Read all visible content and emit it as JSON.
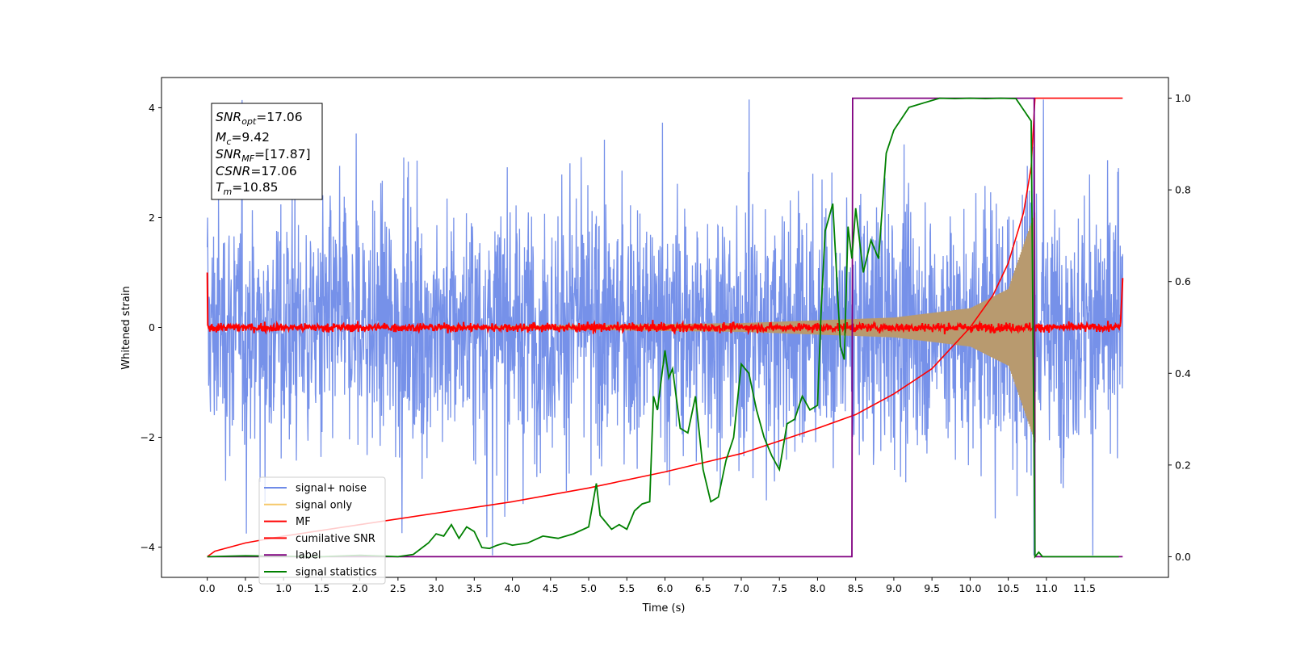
{
  "chart_data": {
    "type": "line",
    "xlabel": "Time (s)",
    "ylabel": "Whitened strain",
    "xlim": [
      -0.6,
      12.6
    ],
    "ylim": [
      -4.55,
      4.55
    ],
    "y2lim": [
      -0.045,
      1.045
    ],
    "x_ticks": [
      "0.0",
      "0.5",
      "1.0",
      "1.5",
      "2.0",
      "2.5",
      "3.0",
      "3.5",
      "4.0",
      "4.5",
      "5.0",
      "5.5",
      "6.0",
      "6.5",
      "7.0",
      "7.5",
      "8.0",
      "8.5",
      "9.0",
      "9.5",
      "10.0",
      "10.5",
      "11.0",
      "11.5"
    ],
    "y_ticks": [
      "4",
      "2",
      "0",
      "−2",
      "−4"
    ],
    "y2_ticks": [
      "1.0",
      "0.8",
      "0.6",
      "0.4",
      "0.2",
      "0.0"
    ],
    "annotation": {
      "snr_opt": "=17.06",
      "mc": "=9.42",
      "snr_mf": "=[17.87]",
      "csnr": "=17.06",
      "tm": "=10.85"
    },
    "legend_position": "lower-left",
    "series": [
      {
        "name": "signal+ noise",
        "axis": "left",
        "color": "#6f8be8",
        "description_values": {
          "x_range": [
            0.0,
            12.0
          ],
          "std": 1.0
        }
      },
      {
        "name": "signal only",
        "axis": "left",
        "color": "#f5c86a",
        "description_values": {
          "x_range": [
            0.0,
            10.85
          ],
          "envelope_at_x": [
            [
              4.0,
              0.03
            ],
            [
              7.0,
              0.08
            ],
            [
              9.0,
              0.18
            ],
            [
              10.0,
              0.35
            ],
            [
              10.5,
              0.7
            ],
            [
              10.85,
              2.1
            ]
          ]
        }
      },
      {
        "name": "MF",
        "axis": "left",
        "color": "#ff0000",
        "description_values": {
          "x_range": [
            0.0,
            12.0
          ],
          "level": 0.0,
          "start_value": 1.0,
          "end_value": 0.9
        }
      },
      {
        "name": "cumilative SNR",
        "axis": "right",
        "color": "#ff0000",
        "x": [
          0.0,
          0.1,
          0.5,
          1.0,
          2.0,
          3.0,
          4.0,
          5.0,
          6.0,
          7.0,
          8.0,
          8.5,
          9.0,
          9.5,
          10.0,
          10.3,
          10.5,
          10.7,
          10.8,
          10.85,
          10.86,
          12.0
        ],
        "y": [
          0.0,
          0.012,
          0.03,
          0.045,
          0.07,
          0.095,
          0.12,
          0.15,
          0.185,
          0.225,
          0.28,
          0.31,
          0.355,
          0.41,
          0.5,
          0.57,
          0.64,
          0.75,
          0.85,
          1.0,
          1.0,
          1.0
        ]
      },
      {
        "name": "label",
        "axis": "right",
        "color": "#800080",
        "x": [
          0.0,
          8.45,
          8.46,
          10.84,
          10.85,
          11.0,
          12.0
        ],
        "y": [
          0.0,
          0.0,
          1.0,
          1.0,
          0.0,
          0.0,
          0.0
        ]
      },
      {
        "name": "signal statistics",
        "axis": "right",
        "color": "#008000",
        "x": [
          0.0,
          0.5,
          1.0,
          1.5,
          2.0,
          2.5,
          2.7,
          2.9,
          3.0,
          3.1,
          3.2,
          3.3,
          3.4,
          3.5,
          3.6,
          3.7,
          3.8,
          3.9,
          4.0,
          4.2,
          4.4,
          4.6,
          4.8,
          5.0,
          5.1,
          5.15,
          5.2,
          5.3,
          5.4,
          5.5,
          5.6,
          5.7,
          5.8,
          5.85,
          5.9,
          6.0,
          6.05,
          6.1,
          6.2,
          6.3,
          6.4,
          6.5,
          6.6,
          6.7,
          6.8,
          6.9,
          7.0,
          7.1,
          7.2,
          7.3,
          7.4,
          7.5,
          7.6,
          7.7,
          7.8,
          7.9,
          8.0,
          8.05,
          8.1,
          8.2,
          8.3,
          8.35,
          8.4,
          8.45,
          8.5,
          8.6,
          8.7,
          8.8,
          8.9,
          9.0,
          9.2,
          9.4,
          9.6,
          9.8,
          10.0,
          10.2,
          10.4,
          10.6,
          10.8,
          10.85,
          10.9,
          10.95,
          11.0,
          11.5,
          11.95
        ],
        "y": [
          0.0,
          0.002,
          0.001,
          0.0,
          0.003,
          0.0,
          0.005,
          0.03,
          0.05,
          0.045,
          0.07,
          0.04,
          0.065,
          0.055,
          0.02,
          0.018,
          0.025,
          0.03,
          0.025,
          0.03,
          0.045,
          0.04,
          0.05,
          0.065,
          0.16,
          0.09,
          0.08,
          0.06,
          0.07,
          0.06,
          0.1,
          0.115,
          0.12,
          0.35,
          0.32,
          0.45,
          0.39,
          0.41,
          0.28,
          0.27,
          0.35,
          0.19,
          0.12,
          0.13,
          0.21,
          0.26,
          0.42,
          0.4,
          0.32,
          0.26,
          0.22,
          0.19,
          0.29,
          0.3,
          0.35,
          0.32,
          0.33,
          0.55,
          0.71,
          0.77,
          0.46,
          0.43,
          0.72,
          0.65,
          0.76,
          0.62,
          0.69,
          0.65,
          0.88,
          0.93,
          0.98,
          0.99,
          1.0,
          0.999,
          1.0,
          0.999,
          1.0,
          0.999,
          0.95,
          0.0,
          0.01,
          0.0,
          0.0,
          0.0,
          0.0
        ]
      }
    ]
  }
}
